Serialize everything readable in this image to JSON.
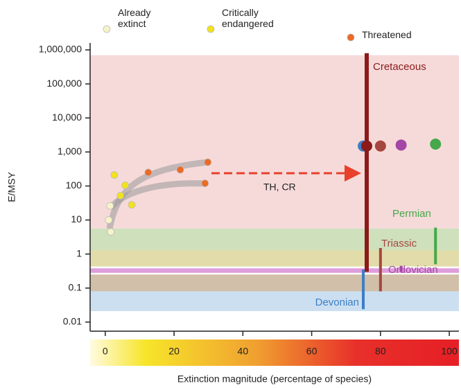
{
  "chart_data": {
    "type": "scatter",
    "xlabel": "Extinction magnitude (percentage of species)",
    "ylabel": "E/MSY",
    "log_y": true,
    "xlim": [
      -4.4,
      102.8
    ],
    "ylim": [
      0.0054,
      1600000
    ],
    "xticks": [
      0,
      20,
      40,
      60,
      80,
      100
    ],
    "yticks": [
      {
        "value": 1000000,
        "label": "1,000,000"
      },
      {
        "value": 100000,
        "label": "100,000"
      },
      {
        "value": 10000,
        "label": "10,000"
      },
      {
        "value": 1000,
        "label": "1,000"
      },
      100,
      10,
      1,
      0.1,
      0.01
    ],
    "series": [
      {
        "name": "Already extinct",
        "color": "#f6f3c8",
        "x": [
          1.4,
          1.0,
          1.6
        ],
        "values": [
          26,
          10,
          4.5
        ]
      },
      {
        "name": "Critically endangered",
        "color": "#f2e21c",
        "x": [
          2.6,
          5.8,
          4.4,
          7.7
        ],
        "values": [
          210,
          105,
          52,
          28
        ]
      },
      {
        "name": "Threatened",
        "color": "#ec6a24",
        "x": [
          12.5,
          21.8,
          29.8,
          29.0
        ],
        "values": [
          250,
          300,
          500,
          120
        ]
      }
    ],
    "annotation": "TH, CR",
    "bands": [
      {
        "color": "#f5d3d3",
        "range": [
          5.6,
          700000
        ]
      },
      {
        "color": "#c6dbb0",
        "range": [
          1.3,
          5.6
        ]
      },
      {
        "color": "#dcd69a",
        "range": [
          0.43,
          1.3
        ]
      },
      {
        "color": "#c9b49a",
        "range": [
          0.08,
          0.25
        ]
      },
      {
        "color": "#c3d9ee",
        "range": [
          0.021,
          0.08
        ]
      },
      {
        "color": "#d98cd6",
        "range": [
          0.28,
          0.38
        ]
      }
    ],
    "events": [
      {
        "name": "Cretaceous",
        "color": "#8b1a1a",
        "x": 76,
        "range": [
          0.3,
          800000
        ],
        "dot": 1500
      },
      {
        "name": "Permian",
        "color": "#45a84a",
        "x": 96,
        "range": [
          0.5,
          6
        ],
        "dot": 1700
      },
      {
        "name": "Triassic",
        "color": "#a5473e",
        "x": 80,
        "range": [
          0.08,
          1.5
        ],
        "dot": 1500
      },
      {
        "name": "Ordovician",
        "color": "#a446a6",
        "x": 86,
        "range": [
          0.3,
          0.45
        ],
        "dot": 1600
      },
      {
        "name": "Devonian",
        "color": "#3c7fc4",
        "x": 75,
        "range": [
          0.024,
          0.35
        ],
        "dot": 1500
      }
    ]
  }
}
